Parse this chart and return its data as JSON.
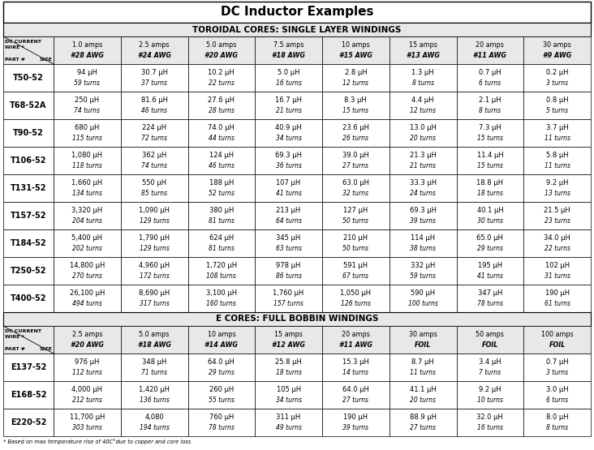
{
  "title": "DC Inductor Examples",
  "section1_title": "TOROIDAL CORES: SINGLE LAYER WINDINGS",
  "section2_title": "E CORES: FULL BOBBIN WINDINGS",
  "footnote": "* Based on max temperature rise of 40C°due to copper and core loss",
  "toroidal_headers": [
    "",
    "1.0 amps\n#28 AWG",
    "2.5 amps\n#24 AWG",
    "5.0 amps\n#20 AWG",
    "7.5 amps\n#18 AWG",
    "10 amps\n#15 AWG",
    "15 amps\n#13 AWG",
    "20 amps\n#11 AWG",
    "30 amps\n#9 AWG"
  ],
  "ecore_headers": [
    "",
    "2.5 amps\n#20 AWG",
    "5.0 amps\n#18 AWG",
    "10 amps\n#14 AWG",
    "15 amps\n#12 AWG",
    "20 amps\n#11 AWG",
    "30 amps\nFOIL",
    "50 amps\nFOIL",
    "100 amps\nFOIL"
  ],
  "toroidal_rows": [
    {
      "part": "T50-52",
      "values": [
        "94 μH\n59 turns",
        "30.7 μH\n37 turns",
        "10.2 μH\n22 turns",
        "5.0 μH\n16 turns",
        "2.8 μH\n12 turns",
        "1.3 μH\n8 turns",
        "0.7 μH\n6 turns",
        "0.2 μH\n3 turns"
      ]
    },
    {
      "part": "T68-52A",
      "values": [
        "250 μH\n74 turns",
        "81.6 μH\n46 turns",
        "27.6 μH\n28 turns",
        "16.7 μH\n21 turns",
        "8.3 μH\n15 turns",
        "4.4 μH\n12 turns",
        "2.1 μH\n8 turns",
        "0.8 μH\n5 turns"
      ]
    },
    {
      "part": "T90-52",
      "values": [
        "680 μH\n115 turns",
        "224 μH\n72 turns",
        "74.0 μH\n44 turns",
        "40.9 μH\n34 turns",
        "23.6 μH\n26 turns",
        "13.0 μH\n20 turns",
        "7.3 μH\n15 turns",
        "3.7 μH\n11 turns"
      ]
    },
    {
      "part": "T106-52",
      "values": [
        "1,080 μH\n118 turns",
        "362 μH\n74 turns",
        "124 μH\n46 turns",
        "69.3 μH\n36 turns",
        "39.0 μH\n27 turns",
        "21.3 μH\n21 turns",
        "11.4 μH\n15 turns",
        "5.8 μH\n11 turns"
      ]
    },
    {
      "part": "T131-52",
      "values": [
        "1,660 μH\n134 turns",
        "550 μH\n85 turns",
        "188 μH\n52 turns",
        "107 μH\n41 turns",
        "63.0 μH\n32 turns",
        "33.3 μH\n24 turns",
        "18.8 μH\n18 turns",
        "9.2 μH\n13 turns"
      ]
    },
    {
      "part": "T157-52",
      "values": [
        "3,320 μH\n204 turns",
        "1,090 μH\n129 turns",
        "380 μH\n81 turns",
        "213 μH\n64 turns",
        "127 μH\n50 turns",
        "69.3 μH\n39 turns",
        "40.1 μH\n30 turns",
        "21.5 μH\n23 turns"
      ]
    },
    {
      "part": "T184-52",
      "values": [
        "5,400 μH\n202 turns",
        "1,790 μH\n129 turns",
        "624 μH\n81 turns",
        "345 μH\n63 turns",
        "210 μH\n50 turns",
        "114 μH\n38 turns",
        "65.0 μH\n29 turns",
        "34.0 μH\n22 turns"
      ]
    },
    {
      "part": "T250-52",
      "values": [
        "14,800 μH\n270 turns",
        "4,960 μH\n172 turns",
        "1,720 μH\n108 turns",
        "978 μH\n86 turns",
        "591 μH\n67 turns",
        "332 μH\n59 turns",
        "195 μH\n41 turns",
        "102 μH\n31 turns"
      ]
    },
    {
      "part": "T400-52",
      "values": [
        "26,100 μH\n494 turns",
        "8,690 μH\n317 turns",
        "3,100 μH\n160 turns",
        "1,760 μH\n157 turns",
        "1,050 μH\n126 turns",
        "590 μH\n100 turns",
        "347 μH\n78 turns",
        "190 μH\n61 turns"
      ]
    }
  ],
  "ecore_rows": [
    {
      "part": "E137-52",
      "values": [
        "976 μH\n112 turns",
        "348 μH\n71 turns",
        "64.0 μH\n29 turns",
        "25.8 μH\n18 turns",
        "15.3 μH\n14 turns",
        "8.7 μH\n11 turns",
        "3.4 μH\n7 turns",
        "0.7 μH\n3 turns"
      ]
    },
    {
      "part": "E168-52",
      "values": [
        "4,000 μH\n212 turns",
        "1,420 μH\n136 turns",
        "260 μH\n55 turns",
        "105 μH\n34 turns",
        "64.0 μH\n27 turns",
        "41.1 μH\n20 turns",
        "9.2 μH\n10 turns",
        "3.0 μH\n6 turns"
      ]
    },
    {
      "part": "E220-52",
      "values": [
        "11,700 μH\n303 turns",
        "4,080\n194 turns",
        "760 μH\n78 turns",
        "311 μH\n49 turns",
        "190 μH\n39 turns",
        "88.9 μH\n27 turns",
        "32.0 μH\n16 turns",
        "8.0 μH\n8 turns"
      ]
    }
  ]
}
